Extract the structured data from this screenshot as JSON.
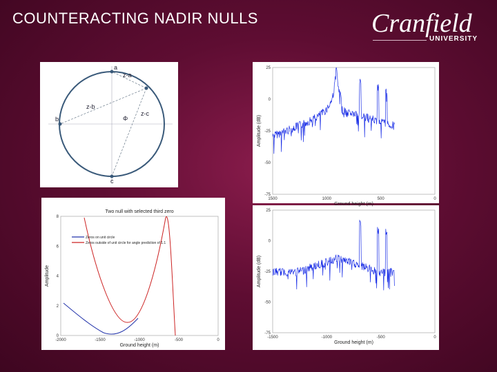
{
  "header": {
    "title": "COUNTERACTING NADIR NULLS",
    "logo": {
      "name": "Cranfield",
      "subtitle": "UNIVERSITY"
    }
  },
  "figures": [
    {
      "kind": "diagram",
      "labels": [
        "a",
        "z-a",
        "z-b",
        "b",
        "z-c",
        "Φ",
        "c"
      ]
    },
    {
      "kind": "plot",
      "ylabel": "Amplitude (dB)",
      "xlabel": "Ground height (m)",
      "yticks": [
        "25",
        "0",
        "-25",
        "-50",
        "-75"
      ],
      "xticks": [
        "1500",
        "1000",
        "500",
        "0"
      ]
    },
    {
      "kind": "plot",
      "title": "Two null with selected third zero",
      "ylabel": "Amplitude",
      "xlabel": "Ground height (m)",
      "legend": [
        "Zeros on unit circle",
        "Zeros outside of unit circle for angle prediction of 1.1"
      ],
      "yticks": [
        "8",
        "6",
        "4",
        "2",
        "0"
      ],
      "xticks": [
        "-2000",
        "-1500",
        "-1000",
        "-500",
        "0"
      ]
    },
    {
      "kind": "plot",
      "ylabel": "Amplitude (dB)",
      "xlabel": "Ground height (m)",
      "yticks": [
        "25",
        "0",
        "-25",
        "-50",
        "-75"
      ],
      "xticks": [
        "-1500",
        "-1000",
        "-500",
        "0"
      ]
    }
  ]
}
